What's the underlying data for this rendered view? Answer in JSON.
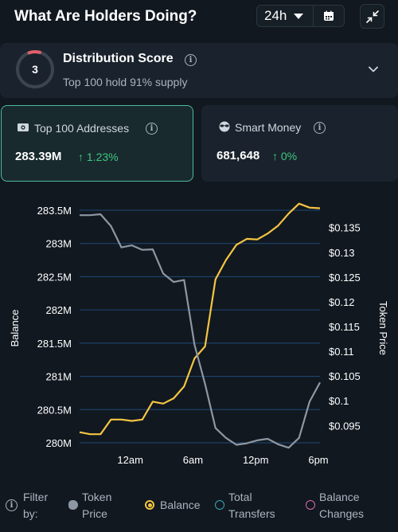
{
  "header": {
    "title": "What Are Holders Doing?",
    "range_value": "24h",
    "icons": [
      "calendar-icon",
      "collapse-icon",
      "chevron-down-icon"
    ]
  },
  "distribution": {
    "score": "3",
    "title": "Distribution Score",
    "subtitle": "Top 100 hold 91% supply",
    "score_fraction": 0.1,
    "ring_color": "#e0606a"
  },
  "cards": {
    "top100": {
      "label": "Top 100 Addresses",
      "value": "283.39M",
      "change": "1.23%",
      "icon": "money-icon"
    },
    "smart_money": {
      "label": "Smart Money",
      "value": "681,648",
      "change": "0%",
      "icon": "sunglasses-icon"
    }
  },
  "colors": {
    "accent_green": "#3fc77f",
    "balance_line": "#f5c542",
    "price_line": "#8d97a3",
    "card_border": "#4fb99e"
  },
  "chart_data": {
    "type": "line",
    "xlabel": "",
    "ylabel_left": "Balance",
    "ylabel_right": "Token Price",
    "x_tick_labels": [
      "12am",
      "6am",
      "12pm",
      "6pm"
    ],
    "y_left_ticks": [
      "283.5M",
      "283M",
      "282.5M",
      "282M",
      "281.5M",
      "281M",
      "280.5M",
      "280M"
    ],
    "y_left_range": [
      280.0,
      283.5
    ],
    "y_right_ticks": [
      "$0.135",
      "$0.13",
      "$0.125",
      "$0.12",
      "$0.115",
      "$0.11",
      "$0.105",
      "$0.1",
      "$0.095"
    ],
    "y_right_range": [
      0.0915,
      0.1385
    ],
    "grid": "horizontal",
    "series": [
      {
        "name": "Balance",
        "axis": "left",
        "color": "#f5c542",
        "values": [
          280.16,
          280.13,
          280.13,
          280.35,
          280.35,
          280.33,
          280.35,
          280.62,
          280.59,
          280.67,
          280.85,
          281.27,
          281.45,
          282.46,
          282.75,
          282.98,
          283.07,
          283.06,
          283.15,
          283.27,
          283.45,
          283.6,
          283.54,
          283.53
        ]
      },
      {
        "name": "Token Price",
        "axis": "right",
        "color": "#8d97a3",
        "values": [
          0.1375,
          0.1375,
          0.1377,
          0.1353,
          0.131,
          0.1314,
          0.1305,
          0.1306,
          0.1257,
          0.124,
          0.1244,
          0.1113,
          0.1034,
          0.0945,
          0.0925,
          0.0911,
          0.0914,
          0.092,
          0.0923,
          0.0912,
          0.0905,
          0.0925,
          0.0998,
          0.1037
        ]
      }
    ]
  },
  "legend": {
    "filter_label_line1": "Filter",
    "filter_label_line2": "by:",
    "items": [
      {
        "line1": "Token",
        "line2": "Price",
        "color": "#8d97a3",
        "selected": true
      },
      {
        "line1": "Balance",
        "line2": "",
        "color": "#f5c542",
        "selected": true
      },
      {
        "line1": "Total",
        "line2": "Transfers",
        "color": "#3aa7b8",
        "selected": false
      },
      {
        "line1": "Balance",
        "line2": "Changes",
        "color": "#e06bb0",
        "selected": false
      }
    ]
  }
}
